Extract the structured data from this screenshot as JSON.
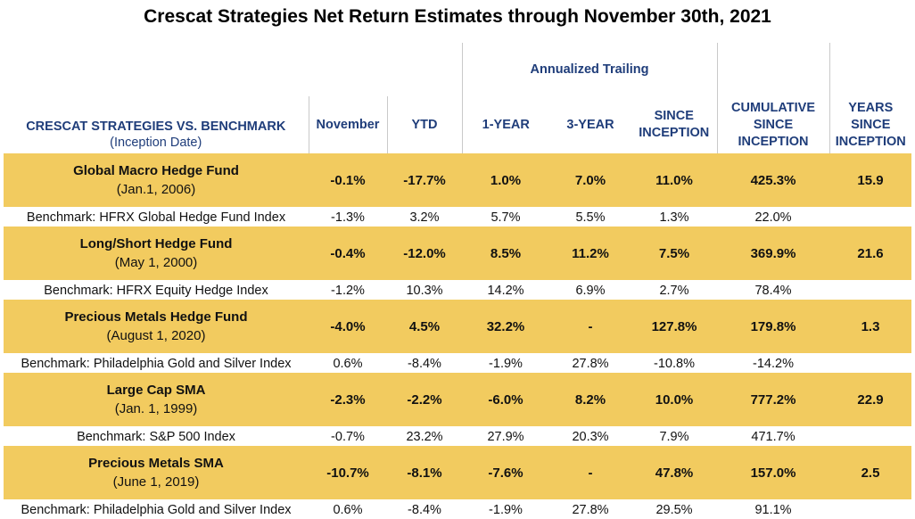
{
  "title": "Crescat Strategies Net Return Estimates through November 30th, 2021",
  "header": {
    "annualized_trailing": "Annualized Trailing",
    "strategy_label": "CRESCAT STRATEGIES VS. BENCHMARK",
    "inception_label": "(Inception Date)",
    "col_november": "November",
    "col_ytd": "YTD",
    "col_1year": "1-YEAR",
    "col_3year": "3-YEAR",
    "col_since_1": "SINCE",
    "col_since_2": "INCEPTION",
    "col_cum_1": "CUMULATIVE",
    "col_cum_2": "SINCE",
    "col_cum_3": "INCEPTION",
    "col_years_1": "YEARS",
    "col_years_2": "SINCE",
    "col_years_3": "INCEPTION"
  },
  "funds": [
    {
      "name": "Global Macro Hedge Fund",
      "inception": "(Jan.1, 2006)",
      "november": "-0.1%",
      "ytd": "-17.7%",
      "one_year": "1.0%",
      "three_year": "7.0%",
      "since_inception": "11.0%",
      "cumulative": "425.3%",
      "years": "15.9",
      "benchmark": {
        "name": "Benchmark: HFRX Global Hedge Fund Index",
        "november": "-1.3%",
        "ytd": "3.2%",
        "one_year": "5.7%",
        "three_year": "5.5%",
        "since_inception": "1.3%",
        "cumulative": "22.0%"
      }
    },
    {
      "name": "Long/Short Hedge Fund",
      "inception": "(May 1, 2000)",
      "november": "-0.4%",
      "ytd": "-12.0%",
      "one_year": "8.5%",
      "three_year": "11.2%",
      "since_inception": "7.5%",
      "cumulative": "369.9%",
      "years": "21.6",
      "benchmark": {
        "name": "Benchmark: HFRX Equity Hedge Index",
        "november": "-1.2%",
        "ytd": "10.3%",
        "one_year": "14.2%",
        "three_year": "6.9%",
        "since_inception": "2.7%",
        "cumulative": "78.4%"
      }
    },
    {
      "name": "Precious Metals Hedge Fund",
      "inception": "(August 1, 2020)",
      "november": "-4.0%",
      "ytd": "4.5%",
      "one_year": "32.2%",
      "three_year": "-",
      "since_inception": "127.8%",
      "cumulative": "179.8%",
      "years": "1.3",
      "benchmark": {
        "name": "Benchmark: Philadelphia Gold and Silver Index",
        "november": "0.6%",
        "ytd": "-8.4%",
        "one_year": "-1.9%",
        "three_year": "27.8%",
        "since_inception": "-10.8%",
        "cumulative": "-14.2%"
      }
    },
    {
      "name": "Large Cap SMA",
      "inception": "(Jan. 1, 1999)",
      "november": "-2.3%",
      "ytd": "-2.2%",
      "one_year": "-6.0%",
      "three_year": "8.2%",
      "since_inception": "10.0%",
      "cumulative": "777.2%",
      "years": "22.9",
      "benchmark": {
        "name": "Benchmark: S&P 500 Index",
        "november": "-0.7%",
        "ytd": "23.2%",
        "one_year": "27.9%",
        "three_year": "20.3%",
        "since_inception": "7.9%",
        "cumulative": "471.7%"
      }
    },
    {
      "name": "Precious Metals SMA",
      "inception": "(June 1, 2019)",
      "november": "-10.7%",
      "ytd": "-8.1%",
      "one_year": "-7.6%",
      "three_year": "-",
      "since_inception": "47.8%",
      "cumulative": "157.0%",
      "years": "2.5",
      "benchmark": {
        "name": "Benchmark: Philadelphia Gold and Silver Index",
        "november": "0.6%",
        "ytd": "-8.4%",
        "one_year": "-1.9%",
        "three_year": "27.8%",
        "since_inception": "29.5%",
        "cumulative": "91.1%"
      }
    }
  ],
  "colors": {
    "fund_row_bg": "#f2cb5f",
    "header_text": "#1f3d7a",
    "divider": "#c9c9c9"
  }
}
